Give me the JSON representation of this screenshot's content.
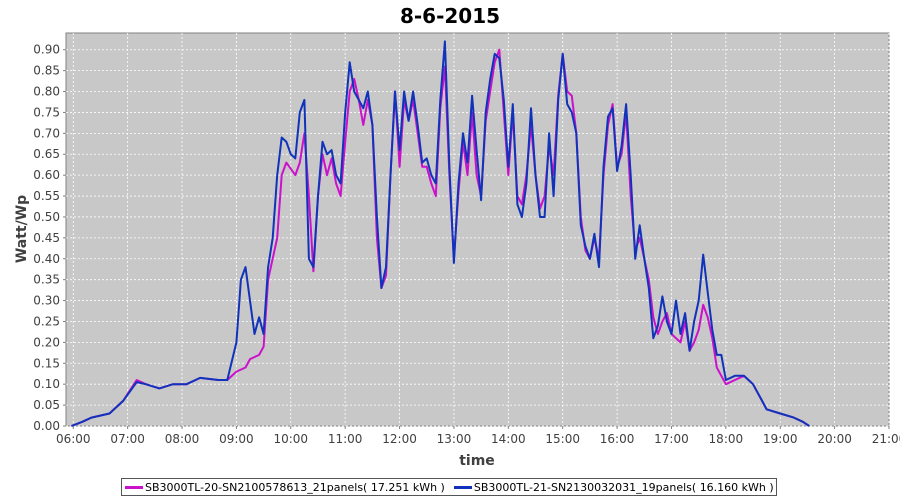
{
  "chart_data": {
    "type": "line",
    "title": "8-6-2015",
    "xlabel": "time",
    "ylabel": "Watt/Wp",
    "xlim": [
      "05:52",
      "21:00"
    ],
    "ylim": [
      0,
      0.94
    ],
    "grid": true,
    "legend_position": "bottom",
    "x_ticks": [
      "06:00",
      "07:00",
      "08:00",
      "09:00",
      "10:00",
      "11:00",
      "12:00",
      "13:00",
      "14:00",
      "15:00",
      "16:00",
      "17:00",
      "18:00",
      "19:00",
      "20:00",
      "21:00"
    ],
    "y_ticks": [
      "0.00",
      "0.05",
      "0.10",
      "0.15",
      "0.20",
      "0.25",
      "0.30",
      "0.35",
      "0.40",
      "0.45",
      "0.50",
      "0.55",
      "0.60",
      "0.65",
      "0.70",
      "0.75",
      "0.80",
      "0.85",
      "0.90"
    ],
    "series": [
      {
        "name": "SB3000TL-20-SN2100578613_21panels( 17.251 kWh )",
        "color": "#cc11cc",
        "points": [
          [
            "05:58",
            0.0
          ],
          [
            "06:10",
            0.01
          ],
          [
            "06:20",
            0.02
          ],
          [
            "06:40",
            0.03
          ],
          [
            "06:55",
            0.06
          ],
          [
            "07:10",
            0.11
          ],
          [
            "07:20",
            0.1
          ],
          [
            "07:35",
            0.09
          ],
          [
            "07:50",
            0.1
          ],
          [
            "08:05",
            0.1
          ],
          [
            "08:20",
            0.115
          ],
          [
            "08:40",
            0.11
          ],
          [
            "08:50",
            0.11
          ],
          [
            "09:00",
            0.13
          ],
          [
            "09:10",
            0.14
          ],
          [
            "09:15",
            0.16
          ],
          [
            "09:25",
            0.17
          ],
          [
            "09:30",
            0.19
          ],
          [
            "09:35",
            0.35
          ],
          [
            "09:45",
            0.45
          ],
          [
            "09:50",
            0.6
          ],
          [
            "09:55",
            0.63
          ],
          [
            "10:05",
            0.6
          ],
          [
            "10:10",
            0.63
          ],
          [
            "10:15",
            0.7
          ],
          [
            "10:20",
            0.55
          ],
          [
            "10:25",
            0.37
          ],
          [
            "10:30",
            0.55
          ],
          [
            "10:35",
            0.65
          ],
          [
            "10:40",
            0.6
          ],
          [
            "10:45",
            0.64
          ],
          [
            "10:50",
            0.58
          ],
          [
            "10:55",
            0.55
          ],
          [
            "11:00",
            0.68
          ],
          [
            "11:05",
            0.8
          ],
          [
            "11:10",
            0.83
          ],
          [
            "11:15",
            0.78
          ],
          [
            "11:20",
            0.72
          ],
          [
            "11:25",
            0.78
          ],
          [
            "11:30",
            0.72
          ],
          [
            "11:35",
            0.45
          ],
          [
            "11:40",
            0.33
          ],
          [
            "11:45",
            0.36
          ],
          [
            "11:50",
            0.6
          ],
          [
            "11:55",
            0.8
          ],
          [
            "12:00",
            0.62
          ],
          [
            "12:05",
            0.78
          ],
          [
            "12:10",
            0.73
          ],
          [
            "12:15",
            0.78
          ],
          [
            "12:20",
            0.7
          ],
          [
            "12:25",
            0.62
          ],
          [
            "12:30",
            0.62
          ],
          [
            "12:35",
            0.58
          ],
          [
            "12:40",
            0.55
          ],
          [
            "12:45",
            0.76
          ],
          [
            "12:50",
            0.86
          ],
          [
            "12:55",
            0.6
          ],
          [
            "13:00",
            0.4
          ],
          [
            "13:05",
            0.56
          ],
          [
            "13:10",
            0.68
          ],
          [
            "13:15",
            0.6
          ],
          [
            "13:20",
            0.75
          ],
          [
            "13:25",
            0.6
          ],
          [
            "13:30",
            0.55
          ],
          [
            "13:35",
            0.73
          ],
          [
            "13:40",
            0.8
          ],
          [
            "13:45",
            0.87
          ],
          [
            "13:50",
            0.9
          ],
          [
            "13:55",
            0.75
          ],
          [
            "14:00",
            0.6
          ],
          [
            "14:05",
            0.75
          ],
          [
            "14:10",
            0.55
          ],
          [
            "14:15",
            0.53
          ],
          [
            "14:20",
            0.6
          ],
          [
            "14:25",
            0.72
          ],
          [
            "14:30",
            0.6
          ],
          [
            "14:35",
            0.52
          ],
          [
            "14:40",
            0.55
          ],
          [
            "14:45",
            0.67
          ],
          [
            "14:50",
            0.6
          ],
          [
            "14:55",
            0.79
          ],
          [
            "15:00",
            0.89
          ],
          [
            "15:05",
            0.8
          ],
          [
            "15:10",
            0.79
          ],
          [
            "15:15",
            0.7
          ],
          [
            "15:20",
            0.5
          ],
          [
            "15:25",
            0.42
          ],
          [
            "15:30",
            0.4
          ],
          [
            "15:35",
            0.45
          ],
          [
            "15:40",
            0.4
          ],
          [
            "15:45",
            0.6
          ],
          [
            "15:50",
            0.72
          ],
          [
            "15:55",
            0.77
          ],
          [
            "16:00",
            0.62
          ],
          [
            "16:05",
            0.65
          ],
          [
            "16:10",
            0.75
          ],
          [
            "16:15",
            0.55
          ],
          [
            "16:20",
            0.42
          ],
          [
            "16:25",
            0.45
          ],
          [
            "16:30",
            0.4
          ],
          [
            "16:35",
            0.35
          ],
          [
            "16:40",
            0.26
          ],
          [
            "16:45",
            0.22
          ],
          [
            "16:50",
            0.25
          ],
          [
            "16:55",
            0.27
          ],
          [
            "17:00",
            0.22
          ],
          [
            "17:05",
            0.21
          ],
          [
            "17:10",
            0.2
          ],
          [
            "17:15",
            0.25
          ],
          [
            "17:20",
            0.18
          ],
          [
            "17:25",
            0.2
          ],
          [
            "17:30",
            0.23
          ],
          [
            "17:35",
            0.29
          ],
          [
            "17:40",
            0.26
          ],
          [
            "17:45",
            0.21
          ],
          [
            "17:50",
            0.14
          ],
          [
            "17:55",
            0.12
          ],
          [
            "18:00",
            0.1
          ],
          [
            "18:10",
            0.11
          ],
          [
            "18:20",
            0.12
          ],
          [
            "18:25",
            0.11
          ],
          [
            "18:30",
            0.1
          ],
          [
            "18:40",
            0.06
          ],
          [
            "18:45",
            0.04
          ],
          [
            "19:00",
            0.03
          ],
          [
            "19:15",
            0.02
          ],
          [
            "19:25",
            0.01
          ],
          [
            "19:32",
            0.0
          ]
        ]
      },
      {
        "name": "SB3000TL-21-SN2130032031_19panels( 16.160 kWh )",
        "color": "#1133bb",
        "points": [
          [
            "05:58",
            0.0
          ],
          [
            "06:10",
            0.01
          ],
          [
            "06:20",
            0.02
          ],
          [
            "06:40",
            0.03
          ],
          [
            "06:55",
            0.06
          ],
          [
            "07:10",
            0.105
          ],
          [
            "07:20",
            0.1
          ],
          [
            "07:35",
            0.09
          ],
          [
            "07:50",
            0.1
          ],
          [
            "08:05",
            0.1
          ],
          [
            "08:20",
            0.115
          ],
          [
            "08:40",
            0.11
          ],
          [
            "08:50",
            0.11
          ],
          [
            "09:00",
            0.2
          ],
          [
            "09:05",
            0.35
          ],
          [
            "09:10",
            0.38
          ],
          [
            "09:15",
            0.3
          ],
          [
            "09:20",
            0.22
          ],
          [
            "09:25",
            0.26
          ],
          [
            "09:30",
            0.22
          ],
          [
            "09:35",
            0.38
          ],
          [
            "09:40",
            0.45
          ],
          [
            "09:45",
            0.6
          ],
          [
            "09:50",
            0.69
          ],
          [
            "09:55",
            0.68
          ],
          [
            "10:00",
            0.65
          ],
          [
            "10:05",
            0.64
          ],
          [
            "10:10",
            0.75
          ],
          [
            "10:15",
            0.78
          ],
          [
            "10:20",
            0.4
          ],
          [
            "10:25",
            0.38
          ],
          [
            "10:30",
            0.55
          ],
          [
            "10:35",
            0.68
          ],
          [
            "10:40",
            0.65
          ],
          [
            "10:45",
            0.66
          ],
          [
            "10:50",
            0.6
          ],
          [
            "10:55",
            0.58
          ],
          [
            "11:00",
            0.75
          ],
          [
            "11:05",
            0.87
          ],
          [
            "11:10",
            0.8
          ],
          [
            "11:15",
            0.78
          ],
          [
            "11:20",
            0.76
          ],
          [
            "11:25",
            0.8
          ],
          [
            "11:30",
            0.72
          ],
          [
            "11:35",
            0.5
          ],
          [
            "11:40",
            0.33
          ],
          [
            "11:45",
            0.38
          ],
          [
            "11:50",
            0.6
          ],
          [
            "11:55",
            0.8
          ],
          [
            "12:00",
            0.66
          ],
          [
            "12:05",
            0.8
          ],
          [
            "12:10",
            0.73
          ],
          [
            "12:15",
            0.8
          ],
          [
            "12:20",
            0.72
          ],
          [
            "12:25",
            0.63
          ],
          [
            "12:30",
            0.64
          ],
          [
            "12:35",
            0.6
          ],
          [
            "12:40",
            0.58
          ],
          [
            "12:45",
            0.78
          ],
          [
            "12:50",
            0.92
          ],
          [
            "12:55",
            0.62
          ],
          [
            "13:00",
            0.39
          ],
          [
            "13:05",
            0.58
          ],
          [
            "13:10",
            0.7
          ],
          [
            "13:15",
            0.63
          ],
          [
            "13:20",
            0.79
          ],
          [
            "13:25",
            0.66
          ],
          [
            "13:30",
            0.54
          ],
          [
            "13:35",
            0.75
          ],
          [
            "13:40",
            0.83
          ],
          [
            "13:45",
            0.89
          ],
          [
            "13:50",
            0.88
          ],
          [
            "13:55",
            0.78
          ],
          [
            "14:00",
            0.62
          ],
          [
            "14:05",
            0.77
          ],
          [
            "14:10",
            0.53
          ],
          [
            "14:15",
            0.5
          ],
          [
            "14:20",
            0.58
          ],
          [
            "14:25",
            0.76
          ],
          [
            "14:30",
            0.6
          ],
          [
            "14:35",
            0.5
          ],
          [
            "14:40",
            0.5
          ],
          [
            "14:45",
            0.7
          ],
          [
            "14:50",
            0.55
          ],
          [
            "14:55",
            0.78
          ],
          [
            "15:00",
            0.89
          ],
          [
            "15:05",
            0.77
          ],
          [
            "15:10",
            0.75
          ],
          [
            "15:15",
            0.7
          ],
          [
            "15:20",
            0.48
          ],
          [
            "15:25",
            0.43
          ],
          [
            "15:30",
            0.4
          ],
          [
            "15:35",
            0.46
          ],
          [
            "15:40",
            0.38
          ],
          [
            "15:45",
            0.62
          ],
          [
            "15:50",
            0.74
          ],
          [
            "15:55",
            0.76
          ],
          [
            "16:00",
            0.61
          ],
          [
            "16:05",
            0.67
          ],
          [
            "16:10",
            0.77
          ],
          [
            "16:15",
            0.6
          ],
          [
            "16:20",
            0.4
          ],
          [
            "16:25",
            0.48
          ],
          [
            "16:30",
            0.4
          ],
          [
            "16:35",
            0.33
          ],
          [
            "16:40",
            0.21
          ],
          [
            "16:45",
            0.24
          ],
          [
            "16:50",
            0.31
          ],
          [
            "16:55",
            0.25
          ],
          [
            "17:00",
            0.22
          ],
          [
            "17:05",
            0.3
          ],
          [
            "17:10",
            0.22
          ],
          [
            "17:15",
            0.27
          ],
          [
            "17:20",
            0.18
          ],
          [
            "17:25",
            0.25
          ],
          [
            "17:30",
            0.3
          ],
          [
            "17:35",
            0.41
          ],
          [
            "17:40",
            0.32
          ],
          [
            "17:45",
            0.23
          ],
          [
            "17:50",
            0.17
          ],
          [
            "17:55",
            0.17
          ],
          [
            "18:00",
            0.11
          ],
          [
            "18:10",
            0.12
          ],
          [
            "18:20",
            0.12
          ],
          [
            "18:25",
            0.11
          ],
          [
            "18:30",
            0.1
          ],
          [
            "18:40",
            0.06
          ],
          [
            "18:45",
            0.04
          ],
          [
            "19:00",
            0.03
          ],
          [
            "19:15",
            0.02
          ],
          [
            "19:25",
            0.01
          ],
          [
            "19:32",
            0.0
          ]
        ]
      }
    ]
  }
}
